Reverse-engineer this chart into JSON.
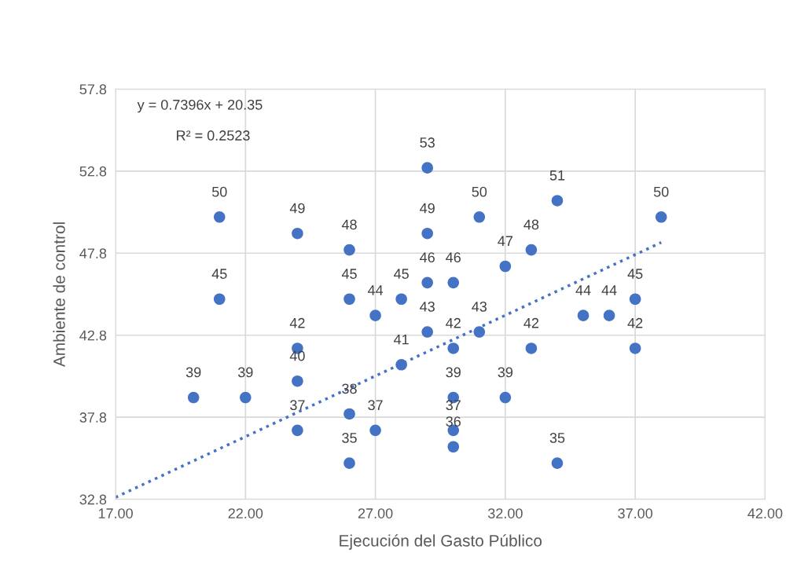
{
  "chart_data": {
    "type": "scatter",
    "xlabel": "Ejecución del Gasto Público",
    "ylabel": "Ambiente de control",
    "xlim": [
      17,
      42
    ],
    "ylim": [
      32.8,
      57.8
    ],
    "xticks": [
      {
        "value": 17,
        "label": "17.00"
      },
      {
        "value": 22,
        "label": "22.00"
      },
      {
        "value": 27,
        "label": "27.00"
      },
      {
        "value": 32,
        "label": "32.00"
      },
      {
        "value": 37,
        "label": "37.00"
      },
      {
        "value": 42,
        "label": "42.00"
      }
    ],
    "yticks": [
      32.8,
      37.8,
      42.8,
      47.8,
      52.8,
      57.8
    ],
    "grid": true,
    "marker": "circle",
    "annotations": [
      "y = 0.7396x + 20.35",
      "R² = 0.2523"
    ],
    "series": [
      {
        "color": "#4472c4",
        "data_labels": true,
        "x": [
          20,
          21,
          21,
          22,
          24,
          24,
          24,
          24,
          26,
          26,
          26,
          26,
          27,
          27,
          28,
          28,
          29,
          29,
          29,
          29,
          30,
          30,
          30,
          30,
          30,
          31,
          31,
          32,
          32,
          33,
          33,
          34,
          34,
          35,
          36,
          37,
          37,
          38
        ],
        "values": [
          39,
          50,
          45,
          39,
          49,
          42,
          40,
          37,
          48,
          45,
          38,
          35,
          44,
          37,
          45,
          41,
          53,
          49,
          46,
          43,
          46,
          42,
          39,
          37,
          36,
          50,
          43,
          47,
          39,
          48,
          42,
          51,
          35,
          44,
          44,
          45,
          42,
          50
        ]
      },
      {
        "type": "line",
        "color": "#4472c4",
        "line_style": "dotted",
        "marker": "none",
        "x": [
          17,
          38
        ],
        "values": [
          32.92,
          48.45
        ]
      }
    ]
  }
}
